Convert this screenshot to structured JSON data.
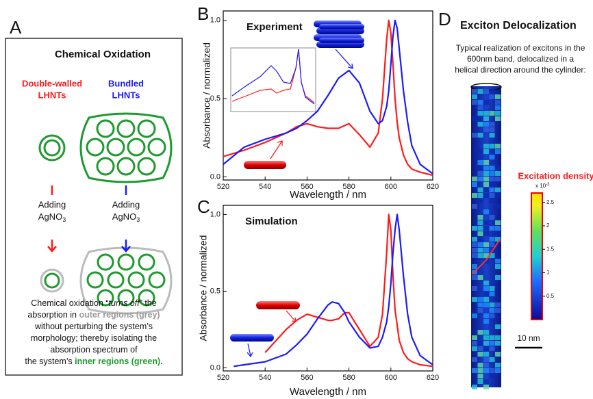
{
  "panel_a": {
    "label": "A",
    "title": "Chemical Oxidation",
    "left_heading": [
      "Double-walled",
      "LHNTs"
    ],
    "right_heading": [
      "Bundled",
      "LHNTs"
    ],
    "adding": "Adding",
    "reagent": {
      "main": "AgNO",
      "sub": "3"
    },
    "caption": [
      [
        {
          "text": "Chemical oxidation “"
        },
        {
          "text": "turns off",
          "style": "italic"
        },
        {
          "text": "” the"
        }
      ],
      [
        {
          "text": "absorption in "
        },
        {
          "text": "outer regions (grey)",
          "style": "grey"
        }
      ],
      [
        {
          "text": "without perturbing the system’s"
        }
      ],
      [
        {
          "text": "morphology; thereby isolating the"
        }
      ],
      [
        {
          "text": "absorption spectrum of"
        }
      ],
      [
        {
          "text": "the system’s "
        },
        {
          "text": "inner regions (green).",
          "style": "green"
        }
      ]
    ]
  },
  "chart_data": [
    {
      "type": "line",
      "panel": "B",
      "title": "Experiment",
      "x_label": "Wavelength / nm",
      "y_label": "Absorbance / normalized",
      "x": [
        520,
        530,
        540,
        550,
        555,
        560,
        565,
        570,
        575,
        580,
        585,
        590,
        594,
        596,
        598,
        599,
        600,
        601,
        602,
        603,
        604,
        606,
        608,
        610,
        614,
        620
      ],
      "series": [
        {
          "color": "#ff1a1a",
          "values": [
            0.13,
            0.17,
            0.22,
            0.28,
            0.32,
            0.34,
            0.32,
            0.31,
            0.31,
            0.34,
            0.27,
            0.19,
            0.28,
            0.5,
            0.88,
            1.0,
            0.92,
            0.72,
            0.5,
            0.35,
            0.25,
            0.14,
            0.08,
            0.05,
            0.03,
            0.01
          ]
        },
        {
          "color": "#1a1aff",
          "values": [
            0.08,
            0.19,
            0.24,
            0.28,
            0.31,
            0.36,
            0.42,
            0.52,
            0.63,
            0.68,
            0.6,
            0.42,
            0.34,
            0.36,
            0.45,
            0.55,
            0.72,
            0.9,
            1.0,
            0.95,
            0.82,
            0.55,
            0.35,
            0.2,
            0.08,
            0.02
          ]
        }
      ],
      "xlim": [
        520,
        620
      ],
      "xticks": [
        520,
        540,
        560,
        580,
        600,
        620
      ],
      "ylim": [
        -0.02,
        1.06
      ],
      "yticks": [
        {
          "value": 0,
          "label": "0.0"
        },
        {
          "value": 0.5,
          "label": "0.5"
        },
        {
          "value": 1,
          "label": "1.0"
        }
      ]
    },
    {
      "type": "line",
      "panel": "C",
      "title": "Simulation",
      "x_label": "Wavelength / nm",
      "y_label": "Absorbance / normalized",
      "x": [
        525,
        530,
        540,
        550,
        555,
        560,
        565,
        570,
        572,
        575,
        578,
        580,
        585,
        590,
        594,
        596,
        598,
        599,
        600,
        601,
        602,
        603,
        604,
        606,
        608,
        610,
        614,
        620
      ],
      "series": [
        {
          "color": "#ff1a1a",
          "values": [
            null,
            null,
            0.1,
            0.25,
            0.31,
            0.35,
            0.33,
            0.31,
            0.31,
            0.32,
            0.36,
            0.36,
            0.25,
            0.14,
            0.2,
            0.35,
            0.75,
            1.0,
            0.9,
            0.6,
            0.38,
            0.28,
            0.18,
            0.1,
            0.06,
            0.04,
            0.02,
            0.01
          ]
        },
        {
          "color": "#1a1aff",
          "values": [
            0.01,
            0.02,
            0.04,
            0.09,
            0.15,
            0.22,
            0.32,
            0.41,
            0.43,
            0.42,
            0.36,
            0.3,
            0.2,
            0.13,
            0.14,
            0.2,
            0.3,
            0.4,
            0.55,
            0.75,
            0.9,
            1.0,
            0.9,
            0.6,
            0.35,
            0.2,
            0.08,
            0.02
          ]
        }
      ],
      "xlim": [
        520,
        620
      ],
      "xticks": [
        520,
        540,
        560,
        580,
        600,
        620
      ],
      "ylim": [
        -0.02,
        1.06
      ],
      "yticks": [
        {
          "value": 0,
          "label": "0.0"
        },
        {
          "value": 0.5,
          "label": "0.5"
        },
        {
          "value": 1,
          "label": "1.0"
        }
      ]
    }
  ],
  "panel_d": {
    "label": "D",
    "title": "Exciton Delocalization",
    "description": [
      "Typical realization of excitons in the",
      "600nm band, delocalized in a",
      "helical direction around the cylinder:"
    ],
    "colorbar": {
      "title": "Excitation density",
      "multiplier": {
        "main": "x 10",
        "sup": "-3"
      },
      "lim": [
        0,
        2.7
      ],
      "ticks": [
        0.5,
        1,
        1.5,
        2,
        2.5
      ]
    },
    "scale_bar": "10 nm"
  }
}
